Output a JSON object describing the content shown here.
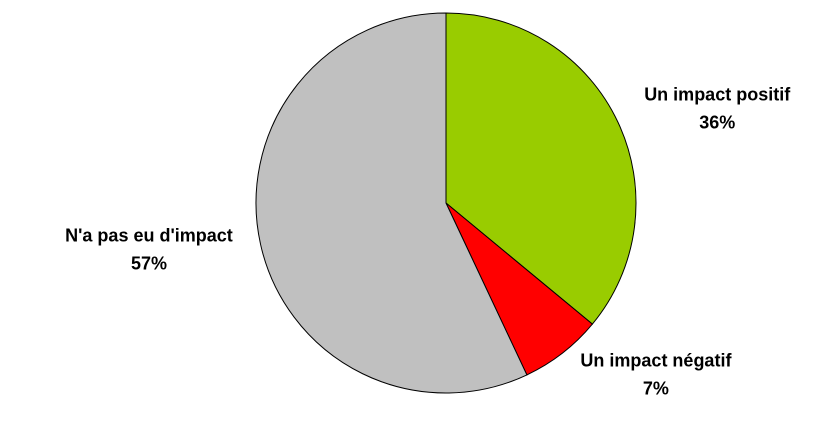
{
  "chart_data": {
    "type": "pie",
    "categories": [
      "Un impact positif",
      "Un impact négatif",
      "N'a pas eu d'impact"
    ],
    "values": [
      36,
      7,
      57
    ],
    "value_labels": [
      "36%",
      "7%",
      "57%"
    ],
    "colors": [
      "#99cc00",
      "#ff0000",
      "#c0c0c0"
    ]
  }
}
